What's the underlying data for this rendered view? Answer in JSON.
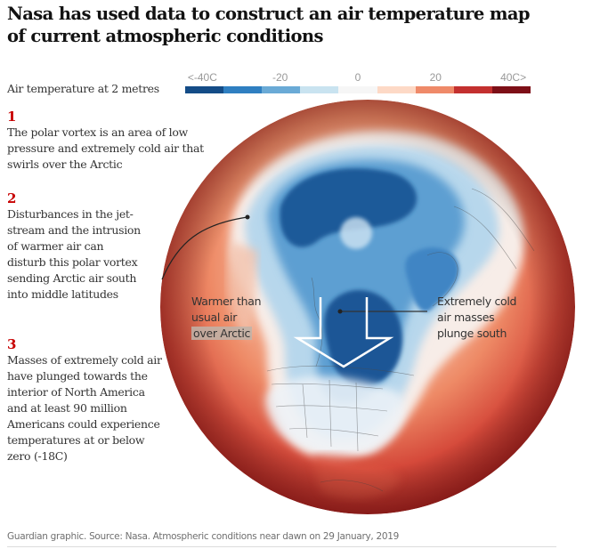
{
  "header": {
    "title": "Nasa has used data to construct an air temperature map of current atmospheric conditions"
  },
  "legend": {
    "label": "Air temperature at 2 metres",
    "ticks": [
      {
        "label": "<-40C",
        "pos": 0
      },
      {
        "label": "-20",
        "pos": 0.25
      },
      {
        "label": "0",
        "pos": 0.5
      },
      {
        "label": "20",
        "pos": 0.75
      },
      {
        "label": "40C>",
        "pos": 1
      }
    ],
    "colors": [
      "#144c87",
      "#2f7fc1",
      "#6aaad6",
      "#c9e3f0",
      "#f6f6f6",
      "#fdd9c6",
      "#ef8a69",
      "#c3302f",
      "#7d0f17"
    ]
  },
  "steps": [
    {
      "number": "1",
      "text": "The polar vortex is an area of low pressure and extremely cold air that swirls over the Arctic"
    },
    {
      "number": "2",
      "text": "Disturbances in the jet-stream and the intrusion of warmer air can disturb this polar vortex sending Arctic air south into middle latitudes"
    },
    {
      "number": "3",
      "text": "Masses of extremely cold air have plunged towards the interior of North America and at least 90 million Americans could experience temperatures at or below zero (-18C)"
    }
  ],
  "annotations": {
    "warm_line1": "Warmer than",
    "warm_line2": "usual air",
    "warm_line3": "over Arctic",
    "cold_line1": "Extremely cold",
    "cold_line2": "air masses",
    "cold_line3": "plunge south"
  },
  "footer": {
    "source": "Guardian graphic. Source: Nasa. Atmospheric conditions near dawn on 29 January, 2019"
  },
  "chart_data": {
    "type": "heatmap",
    "title": "Nasa has used data to construct an air temperature map of current atmospheric conditions",
    "subtitle": "Air temperature at 2 metres",
    "colorbar": {
      "ticks": [
        "<-40C",
        "-20",
        "0",
        "20",
        "40C>"
      ],
      "range": [
        -40,
        40
      ],
      "bins": 9,
      "colors": [
        "#144c87",
        "#2f7fc1",
        "#6aaad6",
        "#c9e3f0",
        "#f6f6f6",
        "#fdd9c6",
        "#ef8a69",
        "#c3302f",
        "#7d0f17"
      ]
    },
    "projection": "orthographic globe centred on North America / Arctic",
    "annotations": [
      "Warmer than usual air over Arctic",
      "Extremely cold air masses plunge south"
    ],
    "date": "29 January, 2019"
  }
}
